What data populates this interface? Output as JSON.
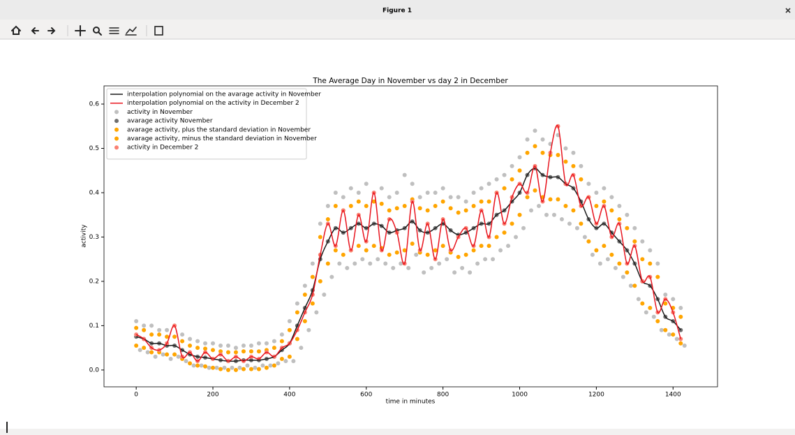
{
  "window": {
    "title": "Figure 1"
  },
  "chart_data": {
    "type": "scatter",
    "title": "The Average Day in November vs day 2 in December",
    "x_label": "time in minutes",
    "y_label": "activity",
    "xlim": [
      -84,
      1516
    ],
    "ylim": [
      -0.038,
      0.641
    ],
    "xticks": [
      0,
      200,
      400,
      600,
      800,
      1000,
      1200,
      1400
    ],
    "yticks": [
      {
        "value": 0,
        "label": "0.0"
      },
      0.1,
      0.2,
      0.3,
      0.4,
      0.5,
      0.6
    ],
    "legend": "upper left",
    "x": [
      0,
      20,
      40,
      60,
      80,
      100,
      120,
      140,
      160,
      180,
      200,
      220,
      240,
      260,
      280,
      300,
      320,
      340,
      360,
      380,
      400,
      420,
      440,
      460,
      480,
      500,
      520,
      540,
      560,
      580,
      600,
      620,
      640,
      660,
      680,
      700,
      720,
      740,
      760,
      780,
      800,
      820,
      840,
      860,
      880,
      900,
      920,
      940,
      960,
      980,
      1000,
      1020,
      1040,
      1060,
      1080,
      1100,
      1120,
      1140,
      1160,
      1180,
      1200,
      1220,
      1240,
      1260,
      1280,
      1300,
      1320,
      1340,
      1360,
      1380,
      1400,
      1420
    ],
    "series": [
      {
        "name": "interpolation polynomial on the avarage activity in November",
        "kind": "line",
        "color": "#1a1a1a",
        "values": [
          0.075,
          0.07,
          0.06,
          0.06,
          0.055,
          0.055,
          0.045,
          0.035,
          0.03,
          0.028,
          0.025,
          0.022,
          0.02,
          0.02,
          0.022,
          0.022,
          0.022,
          0.025,
          0.03,
          0.045,
          0.06,
          0.1,
          0.14,
          0.18,
          0.25,
          0.29,
          0.32,
          0.31,
          0.32,
          0.33,
          0.32,
          0.33,
          0.325,
          0.31,
          0.315,
          0.32,
          0.335,
          0.315,
          0.31,
          0.32,
          0.33,
          0.315,
          0.305,
          0.31,
          0.32,
          0.33,
          0.33,
          0.35,
          0.36,
          0.38,
          0.4,
          0.44,
          0.455,
          0.44,
          0.435,
          0.435,
          0.42,
          0.41,
          0.38,
          0.34,
          0.32,
          0.33,
          0.31,
          0.29,
          0.27,
          0.24,
          0.2,
          0.19,
          0.16,
          0.12,
          0.11,
          0.09
        ]
      },
      {
        "name": "interpolation polynomial on the activity in December 2",
        "kind": "line",
        "color": "#e8141e",
        "values": [
          0.08,
          0.07,
          0.05,
          0.045,
          0.06,
          0.1,
          0.03,
          0.04,
          0.02,
          0.04,
          0.025,
          0.035,
          0.02,
          0.03,
          0.02,
          0.03,
          0.025,
          0.04,
          0.03,
          0.05,
          0.06,
          0.09,
          0.13,
          0.17,
          0.26,
          0.33,
          0.28,
          0.36,
          0.27,
          0.35,
          0.29,
          0.4,
          0.27,
          0.34,
          0.31,
          0.24,
          0.38,
          0.27,
          0.33,
          0.25,
          0.34,
          0.27,
          0.3,
          0.32,
          0.28,
          0.36,
          0.3,
          0.4,
          0.33,
          0.39,
          0.42,
          0.4,
          0.46,
          0.38,
          0.49,
          0.55,
          0.42,
          0.44,
          0.37,
          0.39,
          0.33,
          0.37,
          0.3,
          0.33,
          0.24,
          0.28,
          0.2,
          0.21,
          0.13,
          0.16,
          0.13,
          0.07
        ]
      },
      {
        "name": "activity in November",
        "kind": "scatter",
        "color": "#bfbfbf",
        "x": [
          0,
          20,
          40,
          60,
          80,
          100,
          120,
          140,
          160,
          180,
          200,
          220,
          240,
          260,
          280,
          300,
          320,
          340,
          360,
          380,
          400,
          420,
          440,
          460,
          480,
          500,
          520,
          540,
          560,
          580,
          600,
          620,
          640,
          660,
          680,
          700,
          720,
          740,
          760,
          780,
          800,
          820,
          840,
          860,
          880,
          900,
          920,
          940,
          960,
          980,
          1000,
          1020,
          1040,
          1060,
          1080,
          1100,
          1120,
          1140,
          1160,
          1180,
          1200,
          1220,
          1240,
          1260,
          1280,
          1300,
          1320,
          1340,
          1360,
          1380,
          1400,
          1420,
          10,
          30,
          50,
          70,
          90,
          110,
          130,
          150,
          170,
          190,
          210,
          230,
          250,
          270,
          290,
          310,
          330,
          350,
          370,
          390,
          410,
          430,
          450,
          470,
          490,
          510,
          530,
          550,
          570,
          590,
          610,
          630,
          650,
          670,
          690,
          710,
          730,
          750,
          770,
          790,
          810,
          830,
          850,
          870,
          890,
          910,
          930,
          950,
          970,
          990,
          1010,
          1030,
          1050,
          1070,
          1090,
          1110,
          1130,
          1150,
          1170,
          1190,
          1210,
          1230,
          1250,
          1270,
          1290,
          1310,
          1330,
          1350,
          1370,
          1390,
          1410,
          1430
        ],
        "values": [
          0.11,
          0.1,
          0.1,
          0.09,
          0.09,
          0.1,
          0.08,
          0.07,
          0.065,
          0.06,
          0.06,
          0.055,
          0.055,
          0.05,
          0.055,
          0.055,
          0.06,
          0.06,
          0.065,
          0.08,
          0.11,
          0.15,
          0.19,
          0.24,
          0.33,
          0.37,
          0.4,
          0.39,
          0.41,
          0.4,
          0.42,
          0.4,
          0.41,
          0.39,
          0.4,
          0.44,
          0.42,
          0.39,
          0.4,
          0.4,
          0.41,
          0.39,
          0.39,
          0.38,
          0.4,
          0.41,
          0.42,
          0.43,
          0.44,
          0.46,
          0.48,
          0.52,
          0.54,
          0.52,
          0.51,
          0.53,
          0.5,
          0.49,
          0.46,
          0.42,
          0.4,
          0.41,
          0.39,
          0.37,
          0.35,
          0.32,
          0.29,
          0.27,
          0.24,
          0.17,
          0.16,
          0.14,
          0.045,
          0.04,
          0.03,
          0.035,
          0.025,
          0.03,
          0.02,
          0.01,
          0.01,
          0.005,
          0.005,
          0.005,
          0.005,
          0.005,
          0.01,
          0.005,
          0.01,
          0.01,
          0.015,
          0.02,
          0.02,
          0.05,
          0.09,
          0.13,
          0.17,
          0.21,
          0.24,
          0.23,
          0.24,
          0.25,
          0.24,
          0.25,
          0.24,
          0.23,
          0.24,
          0.23,
          0.26,
          0.22,
          0.23,
          0.24,
          0.25,
          0.22,
          0.23,
          0.22,
          0.24,
          0.25,
          0.25,
          0.27,
          0.28,
          0.3,
          0.32,
          0.36,
          0.37,
          0.35,
          0.35,
          0.34,
          0.33,
          0.32,
          0.3,
          0.26,
          0.24,
          0.25,
          0.23,
          0.21,
          0.19,
          0.16,
          0.13,
          0.12,
          0.09,
          0.08,
          0.07,
          0.055
        ]
      },
      {
        "name": "avarage activity November",
        "kind": "scatter",
        "color": "#6e6e6e",
        "values": [
          0.075,
          0.07,
          0.06,
          0.06,
          0.055,
          0.055,
          0.045,
          0.035,
          0.03,
          0.028,
          0.025,
          0.022,
          0.02,
          0.02,
          0.022,
          0.022,
          0.022,
          0.025,
          0.03,
          0.045,
          0.06,
          0.1,
          0.14,
          0.18,
          0.25,
          0.29,
          0.32,
          0.31,
          0.32,
          0.33,
          0.32,
          0.33,
          0.325,
          0.31,
          0.315,
          0.32,
          0.335,
          0.315,
          0.31,
          0.32,
          0.33,
          0.315,
          0.305,
          0.31,
          0.32,
          0.33,
          0.33,
          0.35,
          0.36,
          0.38,
          0.4,
          0.44,
          0.455,
          0.44,
          0.435,
          0.435,
          0.42,
          0.41,
          0.38,
          0.34,
          0.32,
          0.33,
          0.31,
          0.29,
          0.27,
          0.24,
          0.2,
          0.19,
          0.16,
          0.12,
          0.11,
          0.09
        ]
      },
      {
        "name": "avarage activity, plus the standard deviation in November",
        "kind": "scatter",
        "color": "#ffa500",
        "values": [
          0.095,
          0.09,
          0.08,
          0.08,
          0.075,
          0.075,
          0.065,
          0.055,
          0.05,
          0.048,
          0.045,
          0.042,
          0.04,
          0.04,
          0.042,
          0.042,
          0.042,
          0.045,
          0.05,
          0.065,
          0.09,
          0.13,
          0.17,
          0.21,
          0.3,
          0.34,
          0.37,
          0.36,
          0.37,
          0.38,
          0.37,
          0.38,
          0.375,
          0.36,
          0.365,
          0.37,
          0.385,
          0.365,
          0.36,
          0.37,
          0.38,
          0.365,
          0.355,
          0.36,
          0.37,
          0.38,
          0.38,
          0.4,
          0.41,
          0.43,
          0.45,
          0.49,
          0.505,
          0.49,
          0.485,
          0.485,
          0.47,
          0.46,
          0.43,
          0.39,
          0.37,
          0.38,
          0.36,
          0.34,
          0.32,
          0.29,
          0.25,
          0.24,
          0.21,
          0.15,
          0.14,
          0.12
        ]
      },
      {
        "name": "avarage activity, minus the standard deviation in November",
        "kind": "scatter",
        "color": "#ffa500",
        "values": [
          0.055,
          0.05,
          0.04,
          0.04,
          0.035,
          0.035,
          0.025,
          0.015,
          0.01,
          0.008,
          0.005,
          0.002,
          0,
          0,
          0.002,
          0.002,
          0.002,
          0.005,
          0.01,
          0.025,
          0.03,
          0.07,
          0.11,
          0.15,
          0.2,
          0.24,
          0.27,
          0.26,
          0.27,
          0.28,
          0.27,
          0.28,
          0.275,
          0.26,
          0.265,
          0.27,
          0.285,
          0.265,
          0.26,
          0.27,
          0.28,
          0.265,
          0.255,
          0.26,
          0.27,
          0.28,
          0.28,
          0.3,
          0.31,
          0.33,
          0.35,
          0.39,
          0.405,
          0.39,
          0.385,
          0.385,
          0.37,
          0.36,
          0.33,
          0.29,
          0.27,
          0.28,
          0.26,
          0.24,
          0.22,
          0.19,
          0.15,
          0.14,
          0.11,
          0.09,
          0.08,
          0.06
        ]
      },
      {
        "name": "activity in December 2",
        "kind": "scatter",
        "color": "#fa8072",
        "values": [
          0.08,
          0.07,
          0.05,
          0.045,
          0.06,
          0.1,
          0.03,
          0.04,
          0.02,
          0.04,
          0.025,
          0.035,
          0.02,
          0.03,
          0.02,
          0.03,
          0.025,
          0.04,
          0.03,
          0.05,
          0.06,
          0.09,
          0.13,
          0.17,
          0.26,
          0.33,
          0.28,
          0.36,
          0.27,
          0.35,
          0.29,
          0.4,
          0.27,
          0.34,
          0.31,
          0.24,
          0.38,
          0.27,
          0.33,
          0.25,
          0.34,
          0.27,
          0.3,
          0.32,
          0.28,
          0.36,
          0.3,
          0.4,
          0.33,
          0.39,
          0.42,
          0.4,
          0.46,
          0.38,
          0.49,
          0.55,
          0.42,
          0.44,
          0.37,
          0.39,
          0.33,
          0.37,
          0.3,
          0.33,
          0.24,
          0.28,
          0.2,
          0.21,
          0.13,
          0.16,
          0.13,
          0.07
        ]
      }
    ]
  }
}
